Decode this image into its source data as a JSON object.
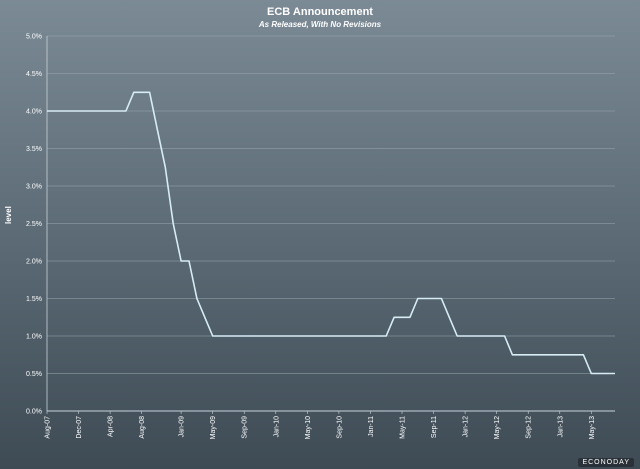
{
  "chart_data": {
    "type": "line",
    "title": "ECB Announcement",
    "subtitle": "As Released, With No Revisions",
    "ylabel": "level",
    "xlabel": "",
    "ylim": [
      0,
      5
    ],
    "y_ticks": [
      "0.0%",
      "0.5%",
      "1.0%",
      "1.5%",
      "2.0%",
      "2.5%",
      "3.0%",
      "3.5%",
      "4.0%",
      "4.5%",
      "5.0%"
    ],
    "x_ticks": [
      "Aug-07",
      "Dec-07",
      "Apr-08",
      "Aug-08",
      "Jan-09",
      "May-09",
      "Sep-09",
      "Jan-10",
      "May-10",
      "Sep-10",
      "Jan-11",
      "May-11",
      "Sep-11",
      "Jan-12",
      "May-12",
      "Sep-12",
      "Jan-13",
      "May-13"
    ],
    "grid": true,
    "series": [
      {
        "points": [
          [
            "2007-08",
            4.0
          ],
          [
            "2008-06",
            4.0
          ],
          [
            "2008-07",
            4.25
          ],
          [
            "2008-09",
            4.25
          ],
          [
            "2008-10",
            3.75
          ],
          [
            "2008-11",
            3.25
          ],
          [
            "2008-12",
            2.5
          ],
          [
            "2009-01",
            2.0
          ],
          [
            "2009-02",
            2.0
          ],
          [
            "2009-03",
            1.5
          ],
          [
            "2009-04",
            1.25
          ],
          [
            "2009-05",
            1.0
          ],
          [
            "2011-03",
            1.0
          ],
          [
            "2011-04",
            1.25
          ],
          [
            "2011-06",
            1.25
          ],
          [
            "2011-07",
            1.5
          ],
          [
            "2011-10",
            1.5
          ],
          [
            "2011-11",
            1.25
          ],
          [
            "2011-12",
            1.0
          ],
          [
            "2012-06",
            1.0
          ],
          [
            "2012-07",
            0.75
          ],
          [
            "2013-04",
            0.75
          ],
          [
            "2013-05",
            0.5
          ],
          [
            "2013-08",
            0.5
          ]
        ],
        "color": "#d8ecf6"
      }
    ]
  },
  "brand": "ECONODAY"
}
